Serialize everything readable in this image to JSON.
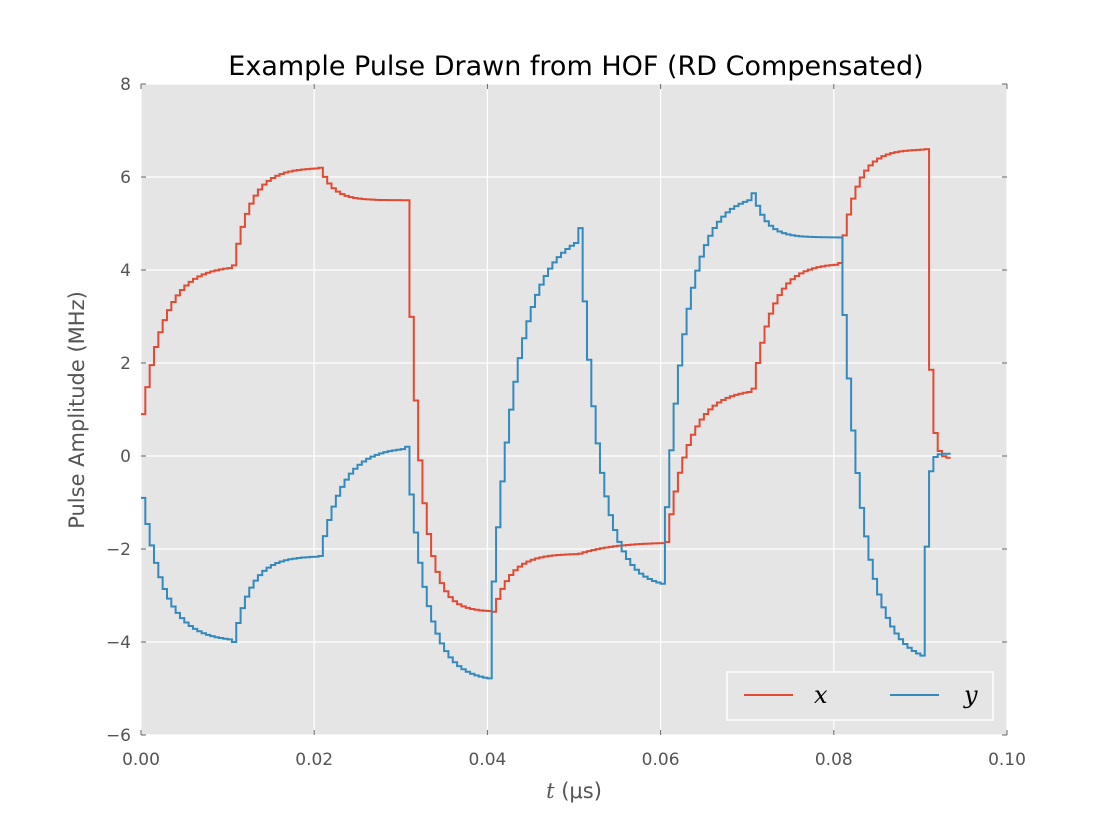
{
  "chart_data": {
    "type": "line",
    "title": "Example Pulse Drawn from HOF (RD Compensated)",
    "xlabel_italic": "t",
    "xlabel_rest": " (μs)",
    "ylabel": "Pulse Amplitude (MHz)",
    "xlim": [
      0.0,
      0.1
    ],
    "ylim": [
      -6,
      8
    ],
    "x_ticks": [
      0.0,
      0.02,
      0.04,
      0.06,
      0.08,
      0.1
    ],
    "x_tick_labels": [
      "0.00",
      "0.02",
      "0.04",
      "0.06",
      "0.08",
      "0.10"
    ],
    "y_ticks": [
      -6,
      -4,
      -2,
      0,
      2,
      4,
      6,
      8
    ],
    "y_tick_labels": [
      "−6",
      "−4",
      "−2",
      "0",
      "2",
      "4",
      "6",
      "8"
    ],
    "grid": true,
    "legend_position": "bottom-right",
    "step_size": 0.0005,
    "series": [
      {
        "name": "x",
        "color": "#E24A33",
        "segments": [
          {
            "t0": 0.0,
            "t1": 0.0105,
            "start": 0.9,
            "end": 4.1,
            "tau": 0.0025
          },
          {
            "t0": 0.0105,
            "t1": 0.0205,
            "start": 4.1,
            "end": 6.2,
            "tau": 0.002
          },
          {
            "t0": 0.0205,
            "t1": 0.0305,
            "start": 6.2,
            "end": 5.5,
            "tau": 0.0015
          },
          {
            "t0": 0.0305,
            "t1": 0.0405,
            "start": 5.5,
            "end": -3.35,
            "tau": 0.0015
          },
          {
            "t0": 0.0405,
            "t1": 0.0505,
            "start": -3.35,
            "end": -2.1,
            "tau": 0.002
          },
          {
            "t0": 0.0505,
            "t1": 0.0605,
            "start": -2.1,
            "end": -1.85,
            "tau": 0.004
          },
          {
            "t0": 0.0605,
            "t1": 0.0705,
            "start": -1.85,
            "end": 1.45,
            "tau": 0.0025
          },
          {
            "t0": 0.0705,
            "t1": 0.0805,
            "start": 1.45,
            "end": 4.15,
            "tau": 0.0022
          },
          {
            "t0": 0.0805,
            "t1": 0.0905,
            "start": 4.15,
            "end": 6.6,
            "tau": 0.0018
          },
          {
            "t0": 0.0905,
            "t1": 0.0935,
            "start": 6.6,
            "end": -0.05,
            "tau": 0.0004
          }
        ]
      },
      {
        "name": "y",
        "color": "#348ABD",
        "segments": [
          {
            "t0": 0.0,
            "t1": 0.0105,
            "start": -0.9,
            "end": -4.0,
            "tau": 0.0025
          },
          {
            "t0": 0.0105,
            "t1": 0.0205,
            "start": -4.0,
            "end": -2.15,
            "tau": 0.002
          },
          {
            "t0": 0.0205,
            "t1": 0.0305,
            "start": -2.15,
            "end": 0.2,
            "tau": 0.0025
          },
          {
            "t0": 0.0305,
            "t1": 0.0405,
            "start": 0.2,
            "end": -4.85,
            "tau": 0.0022
          },
          {
            "t0": 0.0405,
            "t1": 0.0505,
            "start": -2.7,
            "end": 4.9,
            "tau": 0.003
          },
          {
            "t0": 0.0505,
            "t1": 0.0605,
            "start": 4.9,
            "end": -2.85,
            "tau": 0.0022
          },
          {
            "t0": 0.0605,
            "t1": 0.0705,
            "start": -1.1,
            "end": 5.65,
            "tau": 0.0025
          },
          {
            "t0": 0.0705,
            "t1": 0.0805,
            "start": 5.65,
            "end": 4.7,
            "tau": 0.0015
          },
          {
            "t0": 0.0805,
            "t1": 0.0905,
            "start": 4.7,
            "end": -4.5,
            "tau": 0.0025
          },
          {
            "t0": 0.0905,
            "t1": 0.0935,
            "start": -1.95,
            "end": 0.05,
            "tau": 0.0003
          }
        ]
      }
    ]
  }
}
